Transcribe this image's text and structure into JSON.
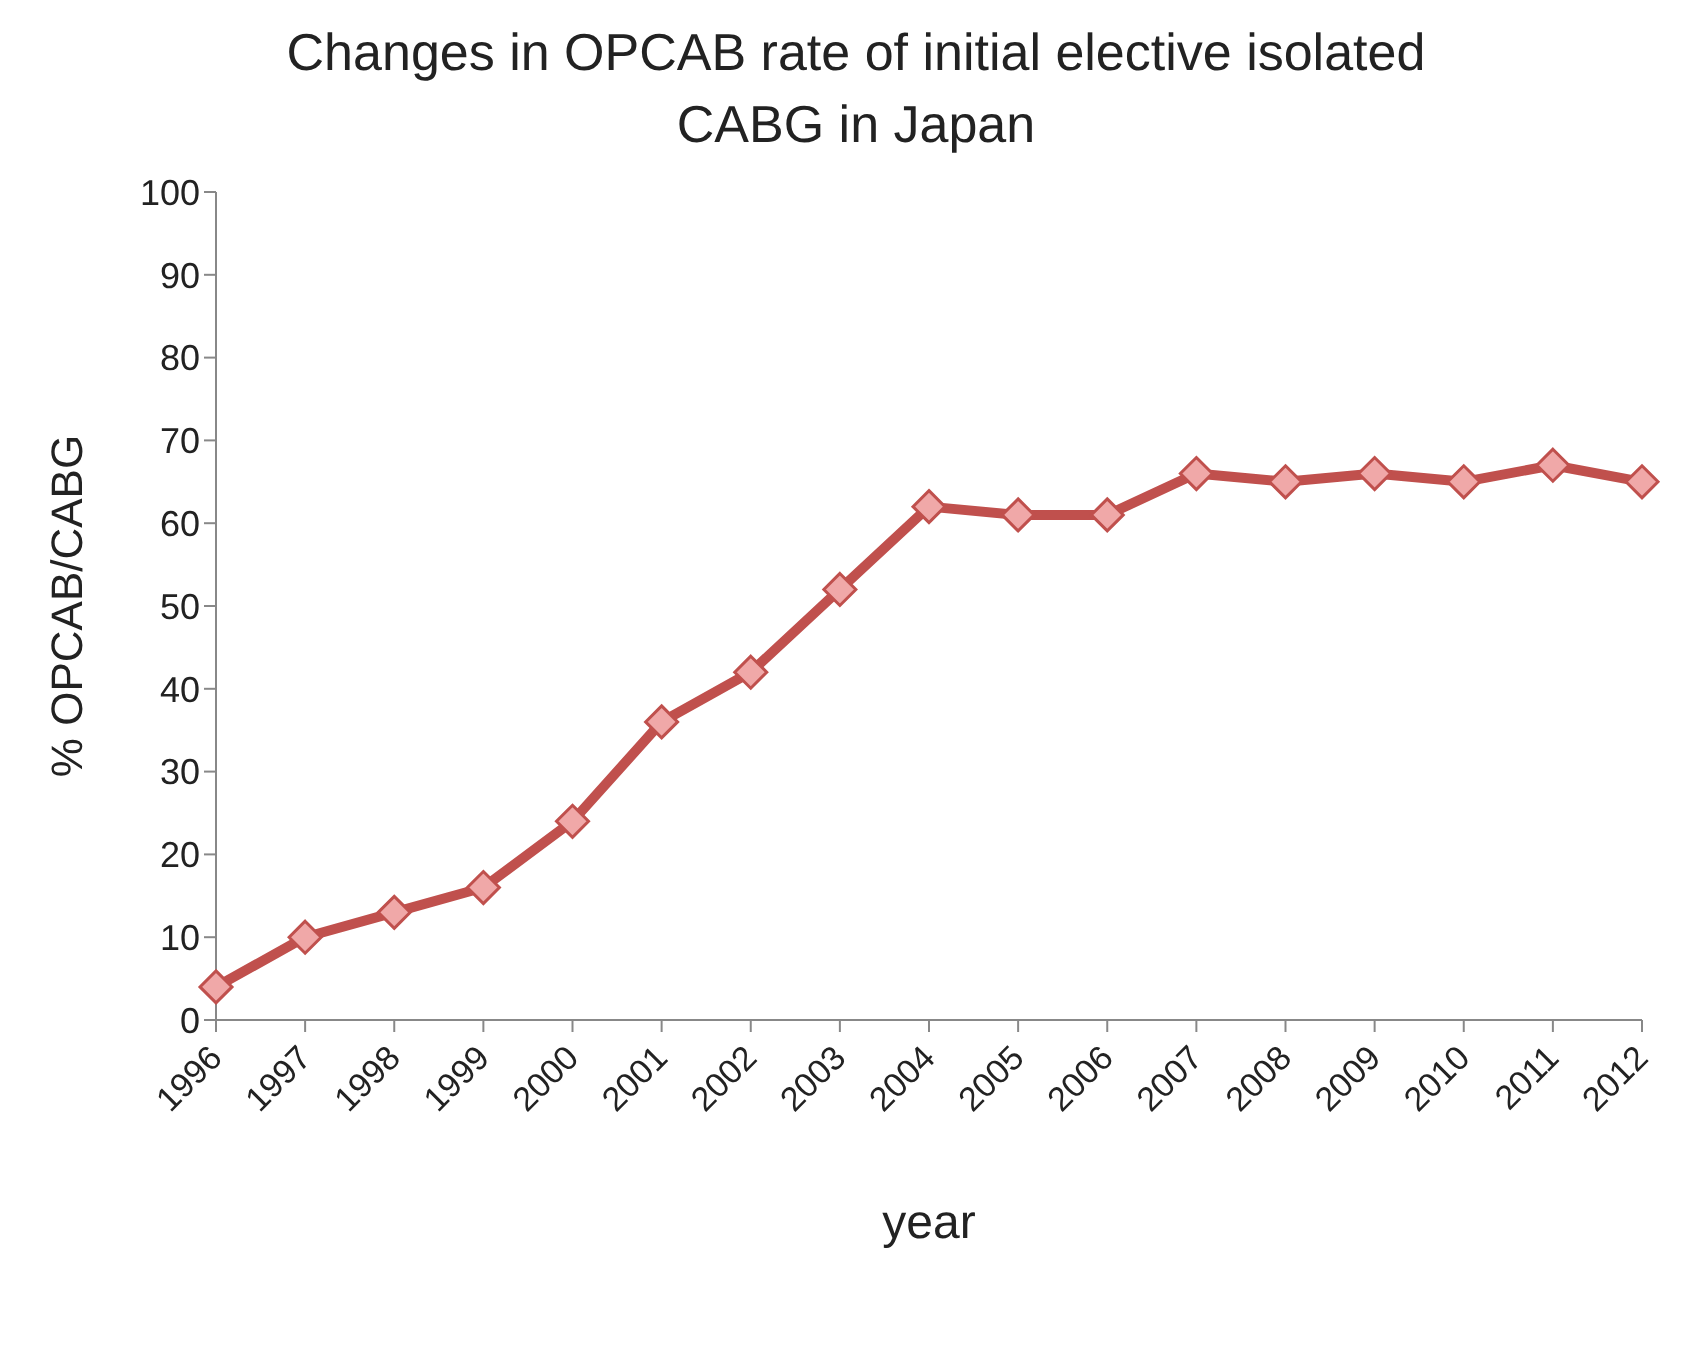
{
  "chart_data": {
    "type": "line",
    "title": "Changes in OPCAB rate of initial elective isolated CABG in Japan",
    "xlabel": "year",
    "ylabel": "% OPCAB/CABG",
    "categories": [
      "1996",
      "1997",
      "1998",
      "1999",
      "2000",
      "2001",
      "2002",
      "2003",
      "2004",
      "2005",
      "2006",
      "2007",
      "2008",
      "2009",
      "2010",
      "2011",
      "2012"
    ],
    "series": [
      {
        "color": "#c0504d",
        "values": [
          4,
          10,
          13,
          16,
          24,
          36,
          42,
          52,
          62,
          61,
          61,
          66,
          65,
          66,
          65,
          67,
          65
        ]
      }
    ],
    "ylim": [
      0,
      100
    ],
    "yticks": [
      0,
      10,
      20,
      30,
      40,
      50,
      60,
      70,
      80,
      90,
      100
    ],
    "grid": false,
    "legend": false,
    "marker": "diamond",
    "line_style": "solid"
  }
}
